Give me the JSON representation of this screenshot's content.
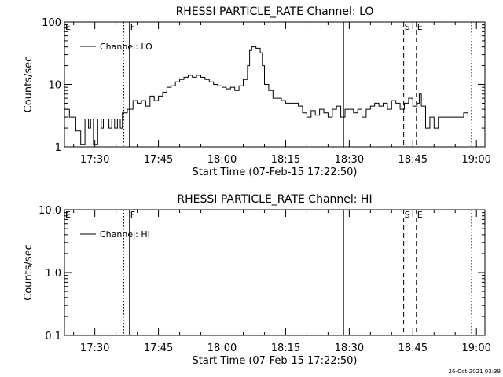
{
  "footer": {
    "timestamp": "26-Oct-2021 03:39"
  },
  "chart_data": [
    {
      "type": "line",
      "title": "RHESSI PARTICLE_RATE Channel: LO",
      "xlabel": "Start Time (07-Feb-15 17:22:50)",
      "ylabel": "Counts/sec",
      "y_scale": "log",
      "ylim": [
        1,
        100
      ],
      "xlim": [
        "17:22:50",
        "19:02:00"
      ],
      "x_ticks": [
        "17:30",
        "17:45",
        "18:00",
        "18:15",
        "18:30",
        "18:45",
        "19:00"
      ],
      "y_ticks": [
        "1",
        "10",
        "100"
      ],
      "legend": {
        "entries": [
          "Channel: LO"
        ],
        "placement": "top-left"
      },
      "vertical_markers": [
        {
          "label": "E",
          "time": "17:22:50",
          "style": "dotted"
        },
        {
          "time": "17:36:50",
          "style": "dotted"
        },
        {
          "label": "F",
          "time": "17:38:10",
          "style": "solid"
        },
        {
          "time": "18:28:40",
          "style": "solid"
        },
        {
          "label": "S",
          "time": "18:42:50",
          "style": "dashed"
        },
        {
          "label": "E",
          "time": "18:45:50",
          "style": "dashed"
        },
        {
          "time": "18:58:50",
          "style": "dotted"
        }
      ],
      "series": [
        {
          "name": "Channel: LO",
          "points": [
            [
              "17:22:50",
              4.0
            ],
            [
              "17:24:00",
              3.0
            ],
            [
              "17:25:00",
              3.0
            ],
            [
              "17:25:30",
              1.8
            ],
            [
              "17:26:20",
              1.8
            ],
            [
              "17:26:40",
              1.1
            ],
            [
              "17:27:20",
              1.1
            ],
            [
              "17:27:40",
              2.8
            ],
            [
              "17:28:30",
              2.0
            ],
            [
              "17:29:00",
              2.8
            ],
            [
              "17:29:40",
              1.1
            ],
            [
              "17:30:20",
              1.1
            ],
            [
              "17:30:40",
              2.8
            ],
            [
              "17:31:30",
              2.0
            ],
            [
              "17:32:00",
              2.8
            ],
            [
              "17:33:00",
              2.8
            ],
            [
              "17:33:20",
              2.0
            ],
            [
              "17:34:00",
              2.8
            ],
            [
              "17:34:40",
              2.0
            ],
            [
              "17:35:20",
              2.8
            ],
            [
              "17:36:00",
              2.0
            ],
            [
              "17:36:30",
              3.5
            ],
            [
              "17:37:10",
              3.5
            ],
            [
              "17:37:40",
              4.0
            ],
            [
              "17:38:30",
              4.0
            ],
            [
              "17:39:00",
              5.5
            ],
            [
              "17:40:00",
              5.0
            ],
            [
              "17:41:00",
              5.5
            ],
            [
              "17:42:00",
              4.5
            ],
            [
              "17:43:00",
              6.5
            ],
            [
              "17:44:00",
              5.5
            ],
            [
              "17:45:00",
              6.5
            ],
            [
              "17:46:00",
              7.5
            ],
            [
              "17:47:00",
              9.0
            ],
            [
              "17:48:00",
              9.5
            ],
            [
              "17:49:00",
              11.0
            ],
            [
              "17:50:00",
              12.0
            ],
            [
              "17:51:00",
              13.0
            ],
            [
              "17:52:00",
              14.0
            ],
            [
              "17:53:00",
              13.0
            ],
            [
              "17:54:00",
              14.0
            ],
            [
              "17:55:00",
              13.0
            ],
            [
              "17:56:00",
              12.0
            ],
            [
              "17:57:00",
              11.0
            ],
            [
              "17:58:00",
              10.0
            ],
            [
              "17:59:00",
              9.5
            ],
            [
              "18:00:00",
              9.0
            ],
            [
              "18:01:00",
              8.5
            ],
            [
              "18:02:00",
              9.0
            ],
            [
              "18:03:00",
              8.0
            ],
            [
              "18:04:00",
              9.5
            ],
            [
              "18:05:00",
              12.0
            ],
            [
              "18:06:00",
              20.0
            ],
            [
              "18:06:30",
              35.0
            ],
            [
              "18:07:00",
              40.0
            ],
            [
              "18:08:00",
              38.0
            ],
            [
              "18:09:00",
              32.0
            ],
            [
              "18:09:30",
              20.0
            ],
            [
              "18:10:00",
              10.0
            ],
            [
              "18:11:00",
              8.0
            ],
            [
              "18:12:00",
              6.0
            ],
            [
              "18:13:00",
              6.0
            ],
            [
              "18:14:00",
              5.5
            ],
            [
              "18:15:00",
              5.0
            ],
            [
              "18:16:00",
              5.0
            ],
            [
              "18:17:00",
              5.0
            ],
            [
              "18:18:00",
              4.5
            ],
            [
              "18:19:00",
              3.5
            ],
            [
              "18:20:00",
              3.0
            ],
            [
              "18:21:00",
              3.8
            ],
            [
              "18:22:00",
              3.2
            ],
            [
              "18:23:00",
              4.0
            ],
            [
              "18:24:00",
              3.5
            ],
            [
              "18:25:00",
              3.0
            ],
            [
              "18:26:00",
              4.0
            ],
            [
              "18:27:00",
              4.5
            ],
            [
              "18:28:00",
              3.0
            ],
            [
              "18:29:00",
              4.0
            ],
            [
              "18:30:00",
              4.0
            ],
            [
              "18:31:00",
              3.5
            ],
            [
              "18:32:00",
              4.0
            ],
            [
              "18:33:00",
              3.0
            ],
            [
              "18:34:00",
              4.0
            ],
            [
              "18:35:00",
              4.5
            ],
            [
              "18:36:00",
              5.0
            ],
            [
              "18:37:00",
              4.5
            ],
            [
              "18:38:00",
              5.0
            ],
            [
              "18:39:00",
              4.0
            ],
            [
              "18:40:00",
              5.5
            ],
            [
              "18:41:00",
              5.0
            ],
            [
              "18:42:00",
              4.0
            ],
            [
              "18:43:00",
              5.0
            ],
            [
              "18:44:00",
              6.0
            ],
            [
              "18:45:00",
              4.5
            ],
            [
              "18:46:00",
              5.0
            ],
            [
              "18:46:30",
              7.0
            ],
            [
              "18:47:00",
              4.5
            ],
            [
              "18:48:00",
              2.0
            ],
            [
              "18:49:00",
              3.0
            ],
            [
              "18:50:00",
              2.0
            ],
            [
              "18:51:00",
              3.0
            ],
            [
              "18:52:00",
              3.0
            ],
            [
              "18:53:00",
              3.0
            ],
            [
              "18:54:00",
              3.0
            ],
            [
              "18:55:00",
              3.0
            ],
            [
              "18:56:00",
              3.0
            ],
            [
              "18:57:00",
              3.5
            ],
            [
              "18:58:00",
              3.0
            ]
          ]
        }
      ]
    },
    {
      "type": "line",
      "title": "RHESSI PARTICLE_RATE Channel: HI",
      "xlabel": "Start Time (07-Feb-15 17:22:50)",
      "ylabel": "Counts/sec",
      "y_scale": "log",
      "ylim": [
        0.1,
        10
      ],
      "xlim": [
        "17:22:50",
        "19:02:00"
      ],
      "x_ticks": [
        "17:30",
        "17:45",
        "18:00",
        "18:15",
        "18:30",
        "18:45",
        "19:00"
      ],
      "y_ticks": [
        "0.1",
        "1.0",
        "10.0"
      ],
      "legend": {
        "entries": [
          "Channel: HI"
        ],
        "placement": "top-left"
      },
      "vertical_markers": [
        {
          "label": "E",
          "time": "17:22:50",
          "style": "dotted"
        },
        {
          "time": "17:36:50",
          "style": "dotted"
        },
        {
          "label": "F",
          "time": "17:38:10",
          "style": "solid"
        },
        {
          "time": "18:28:40",
          "style": "solid"
        },
        {
          "label": "S",
          "time": "18:42:50",
          "style": "dashed"
        },
        {
          "label": "E",
          "time": "18:45:50",
          "style": "dashed"
        },
        {
          "time": "18:58:50",
          "style": "dotted"
        }
      ],
      "series": [
        {
          "name": "Channel: HI",
          "points": []
        }
      ]
    }
  ]
}
